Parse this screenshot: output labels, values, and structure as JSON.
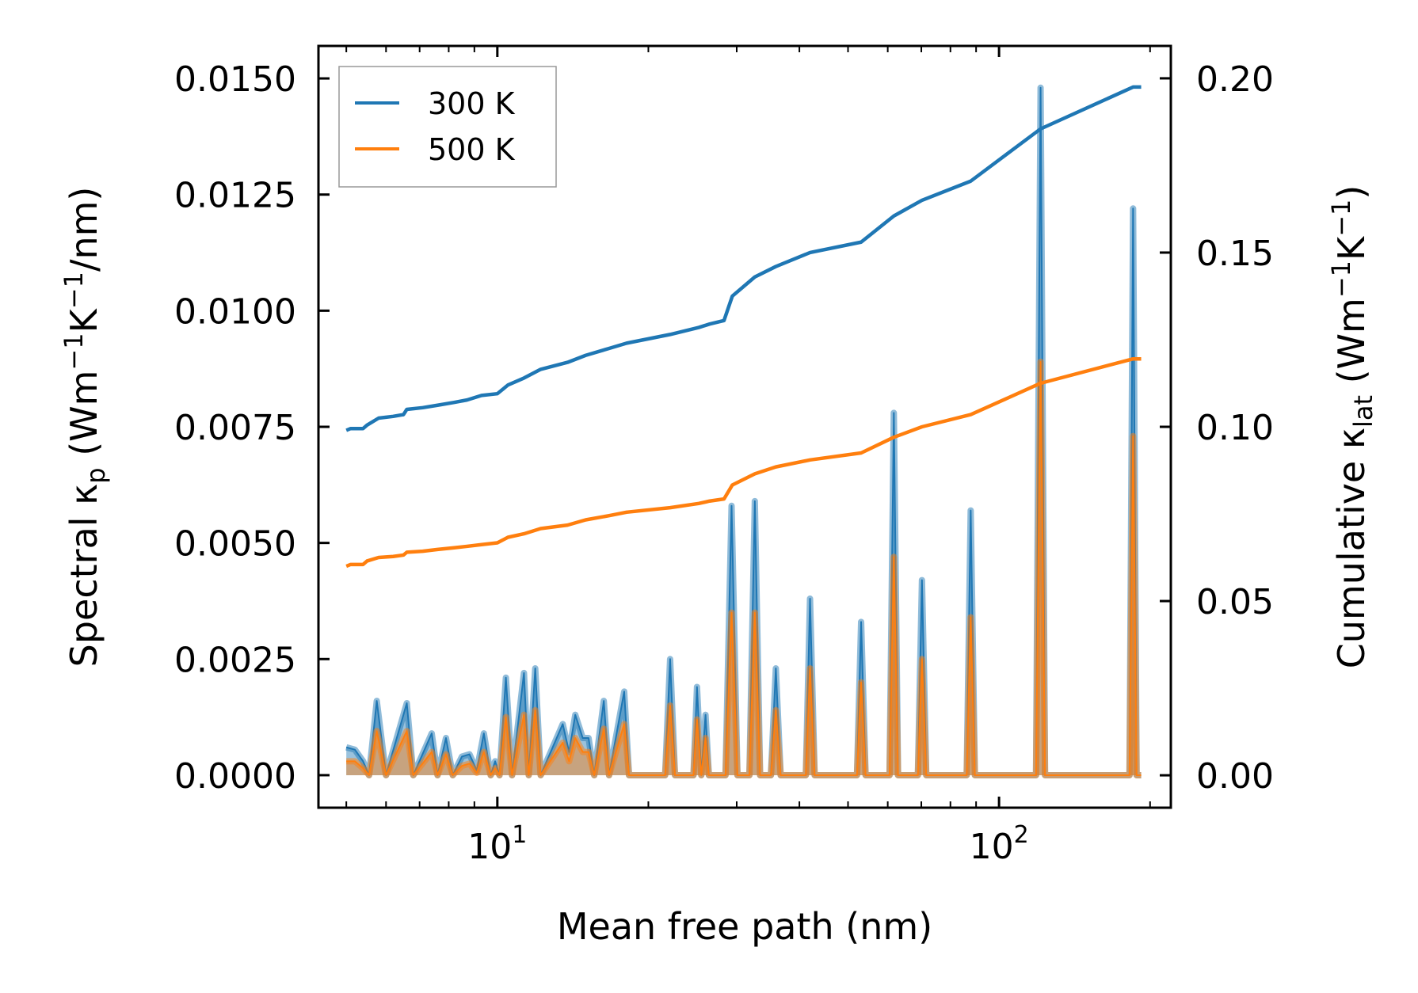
{
  "chart_data": {
    "type": "line",
    "xscale": "log",
    "xlabel": "Mean free path (nm)",
    "ylabel_left": {
      "base": "Spectral κ",
      "sub": "p",
      "units_prefix": " (Wm",
      "exp1": "−1",
      "mid": "K",
      "exp2": "−1",
      "suffix": "/nm)"
    },
    "ylabel_right": {
      "base": "Cumulative κ",
      "sub": "lat",
      "units_prefix": " (Wm",
      "exp1": "−1",
      "mid": "K",
      "exp2": "−1",
      "suffix": ")"
    },
    "xlim": [
      4.4,
      220
    ],
    "ylim_left": [
      -0.0007,
      0.0157
    ],
    "ylim_right": [
      -0.0093,
      0.2093
    ],
    "x_major_ticks": [
      10,
      100
    ],
    "x_tick_labels": [
      {
        "base": "10",
        "exp": "1"
      },
      {
        "base": "10",
        "exp": "2"
      }
    ],
    "y_left_ticks": [
      0.0,
      0.0025,
      0.005,
      0.0075,
      0.01,
      0.0125,
      0.015
    ],
    "y_left_tick_labels": [
      "0.0000",
      "0.0025",
      "0.0050",
      "0.0075",
      "0.0100",
      "0.0125",
      "0.0150"
    ],
    "y_right_ticks": [
      0.0,
      0.05,
      0.1,
      0.15,
      0.2
    ],
    "y_right_tick_labels": [
      "0.00",
      "0.05",
      "0.10",
      "0.15",
      "0.20"
    ],
    "legend": {
      "position": "top-left",
      "entries": [
        "300 K",
        "500 K"
      ]
    },
    "series": [
      {
        "name": "300 K",
        "color": "#1f77b4",
        "kind": "cumulative",
        "axis": "right",
        "points": [
          [
            5.0,
            0.099
          ],
          [
            5.1,
            0.0995
          ],
          [
            5.4,
            0.0995
          ],
          [
            5.5,
            0.1005
          ],
          [
            5.8,
            0.1025
          ],
          [
            6.2,
            0.103
          ],
          [
            6.5,
            0.1035
          ],
          [
            6.6,
            0.105
          ],
          [
            7.1,
            0.1055
          ],
          [
            7.6,
            0.1062
          ],
          [
            8.2,
            0.107
          ],
          [
            8.7,
            0.1077
          ],
          [
            9.3,
            0.109
          ],
          [
            10.0,
            0.1095
          ],
          [
            10.5,
            0.112
          ],
          [
            11.3,
            0.114
          ],
          [
            12.2,
            0.1165
          ],
          [
            13.8,
            0.1185
          ],
          [
            15.0,
            0.1205
          ],
          [
            16.7,
            0.1225
          ],
          [
            18.1,
            0.124
          ],
          [
            22.1,
            0.1265
          ],
          [
            25.2,
            0.1285
          ],
          [
            26.5,
            0.1295
          ],
          [
            28.3,
            0.1305
          ],
          [
            29.4,
            0.1375
          ],
          [
            32.6,
            0.143
          ],
          [
            35.9,
            0.146
          ],
          [
            42.0,
            0.15
          ],
          [
            53.1,
            0.153
          ],
          [
            61.7,
            0.1605
          ],
          [
            70.2,
            0.165
          ],
          [
            87.8,
            0.1705
          ],
          [
            121.0,
            0.1855
          ],
          [
            185.0,
            0.1975
          ],
          [
            192.0,
            0.1975
          ]
        ]
      },
      {
        "name": "500 K",
        "color": "#ff7f0e",
        "kind": "cumulative",
        "axis": "right",
        "points": [
          [
            5.0,
            0.06
          ],
          [
            5.1,
            0.0605
          ],
          [
            5.4,
            0.0605
          ],
          [
            5.5,
            0.0615
          ],
          [
            5.8,
            0.0625
          ],
          [
            6.2,
            0.0628
          ],
          [
            6.5,
            0.0632
          ],
          [
            6.6,
            0.064
          ],
          [
            7.1,
            0.0643
          ],
          [
            7.6,
            0.0648
          ],
          [
            8.2,
            0.0653
          ],
          [
            8.7,
            0.0657
          ],
          [
            9.3,
            0.0662
          ],
          [
            10.0,
            0.0667
          ],
          [
            10.5,
            0.0683
          ],
          [
            11.3,
            0.0693
          ],
          [
            12.2,
            0.0708
          ],
          [
            13.8,
            0.0718
          ],
          [
            15.0,
            0.0733
          ],
          [
            16.7,
            0.0745
          ],
          [
            18.1,
            0.0755
          ],
          [
            22.1,
            0.0768
          ],
          [
            25.2,
            0.078
          ],
          [
            26.5,
            0.0787
          ],
          [
            28.3,
            0.0793
          ],
          [
            29.4,
            0.0833
          ],
          [
            32.6,
            0.0865
          ],
          [
            35.9,
            0.0885
          ],
          [
            42.0,
            0.0905
          ],
          [
            53.1,
            0.0925
          ],
          [
            61.7,
            0.097
          ],
          [
            70.2,
            0.1
          ],
          [
            87.8,
            0.1035
          ],
          [
            121.0,
            0.1125
          ],
          [
            185.0,
            0.1195
          ],
          [
            192.0,
            0.1195
          ]
        ]
      },
      {
        "name": "300 K spectral",
        "color": "#1f77b4",
        "kind": "spectral",
        "axis": "left",
        "points": [
          [
            5.0,
            0.0006
          ],
          [
            5.2,
            0.00055
          ],
          [
            5.4,
            0.0003
          ],
          [
            5.55,
            0.0
          ],
          [
            5.75,
            0.0016
          ],
          [
            6.0,
            0.0
          ],
          [
            6.6,
            0.00155
          ],
          [
            6.8,
            0.0
          ],
          [
            7.4,
            0.0009
          ],
          [
            7.6,
            0.0
          ],
          [
            7.9,
            0.0008
          ],
          [
            8.15,
            0.0
          ],
          [
            8.5,
            0.0004
          ],
          [
            8.8,
            0.00045
          ],
          [
            9.1,
            0.0001
          ],
          [
            9.4,
            0.0009
          ],
          [
            9.7,
            0.0
          ],
          [
            9.9,
            0.0003
          ],
          [
            10.1,
            0.0
          ],
          [
            10.4,
            0.0021
          ],
          [
            10.7,
            0.0
          ],
          [
            11.3,
            0.0022
          ],
          [
            11.55,
            0.0
          ],
          [
            11.9,
            0.0023
          ],
          [
            12.2,
            0.0
          ],
          [
            13.5,
            0.0011
          ],
          [
            13.9,
            0.0005
          ],
          [
            14.3,
            0.0013
          ],
          [
            14.8,
            0.0008
          ],
          [
            15.2,
            0.0008
          ],
          [
            15.6,
            0.0
          ],
          [
            16.3,
            0.0016
          ],
          [
            16.7,
            0.0
          ],
          [
            17.9,
            0.0018
          ],
          [
            18.3,
            0.0
          ],
          [
            21.6,
            0.0
          ],
          [
            22.1,
            0.0025
          ],
          [
            22.6,
            0.0
          ],
          [
            24.6,
            0.0
          ],
          [
            25.0,
            0.0019
          ],
          [
            25.5,
            0.0
          ],
          [
            26.0,
            0.0013
          ],
          [
            26.4,
            0.0
          ],
          [
            28.5,
            0.0
          ],
          [
            29.3,
            0.0058
          ],
          [
            30.1,
            0.0
          ],
          [
            31.8,
            0.0
          ],
          [
            32.6,
            0.0059
          ],
          [
            33.4,
            0.0
          ],
          [
            35.1,
            0.0
          ],
          [
            35.9,
            0.0023
          ],
          [
            36.7,
            0.0
          ],
          [
            41.2,
            0.0
          ],
          [
            42.0,
            0.0038
          ],
          [
            42.9,
            0.0
          ],
          [
            52.1,
            0.0
          ],
          [
            53.1,
            0.0033
          ],
          [
            54.2,
            0.0
          ],
          [
            60.5,
            0.0
          ],
          [
            61.7,
            0.0078
          ],
          [
            62.9,
            0.0
          ],
          [
            68.9,
            0.0
          ],
          [
            70.2,
            0.0042
          ],
          [
            71.6,
            0.0
          ],
          [
            86.2,
            0.0
          ],
          [
            87.8,
            0.0057
          ],
          [
            89.5,
            0.0
          ],
          [
            118.5,
            0.0
          ],
          [
            121.0,
            0.0148
          ],
          [
            123.5,
            0.0
          ],
          [
            182.0,
            0.0
          ],
          [
            185.0,
            0.0122
          ],
          [
            188.0,
            0.0
          ],
          [
            192.0,
            0.0
          ]
        ]
      },
      {
        "name": "500 K spectral",
        "color": "#ff7f0e",
        "kind": "spectral",
        "axis": "left",
        "points": [
          [
            5.0,
            0.0003
          ],
          [
            5.2,
            0.0003
          ],
          [
            5.4,
            0.00015
          ],
          [
            5.55,
            0.0
          ],
          [
            5.75,
            0.00095
          ],
          [
            6.0,
            0.0
          ],
          [
            6.6,
            0.00095
          ],
          [
            6.8,
            0.0
          ],
          [
            7.4,
            0.0005
          ],
          [
            7.6,
            0.0
          ],
          [
            7.9,
            0.00045
          ],
          [
            8.15,
            0.0
          ],
          [
            8.5,
            0.0002
          ],
          [
            8.8,
            0.00025
          ],
          [
            9.1,
            5e-05
          ],
          [
            9.4,
            0.0005
          ],
          [
            9.7,
            0.0
          ],
          [
            9.9,
            0.00015
          ],
          [
            10.1,
            0.0
          ],
          [
            10.4,
            0.00125
          ],
          [
            10.7,
            0.0
          ],
          [
            11.3,
            0.0013
          ],
          [
            11.55,
            0.0
          ],
          [
            11.9,
            0.0014
          ],
          [
            12.2,
            0.0
          ],
          [
            13.5,
            0.0007
          ],
          [
            13.9,
            0.0003
          ],
          [
            14.3,
            0.0008
          ],
          [
            14.8,
            0.0005
          ],
          [
            15.2,
            0.0005
          ],
          [
            15.6,
            0.0
          ],
          [
            16.3,
            0.001
          ],
          [
            16.7,
            0.0
          ],
          [
            17.9,
            0.0011
          ],
          [
            18.3,
            0.0
          ],
          [
            21.6,
            0.0
          ],
          [
            22.1,
            0.0015
          ],
          [
            22.6,
            0.0
          ],
          [
            24.6,
            0.0
          ],
          [
            25.0,
            0.0012
          ],
          [
            25.5,
            0.0
          ],
          [
            26.0,
            0.0008
          ],
          [
            26.4,
            0.0
          ],
          [
            28.5,
            0.0
          ],
          [
            29.3,
            0.0035
          ],
          [
            30.1,
            0.0
          ],
          [
            31.8,
            0.0
          ],
          [
            32.6,
            0.0035
          ],
          [
            33.4,
            0.0
          ],
          [
            35.1,
            0.0
          ],
          [
            35.9,
            0.0014
          ],
          [
            36.7,
            0.0
          ],
          [
            41.2,
            0.0
          ],
          [
            42.0,
            0.0023
          ],
          [
            42.9,
            0.0
          ],
          [
            52.1,
            0.0
          ],
          [
            53.1,
            0.002
          ],
          [
            54.2,
            0.0
          ],
          [
            60.5,
            0.0
          ],
          [
            61.7,
            0.0047
          ],
          [
            62.9,
            0.0
          ],
          [
            68.9,
            0.0
          ],
          [
            70.2,
            0.0025
          ],
          [
            71.6,
            0.0
          ],
          [
            86.2,
            0.0
          ],
          [
            87.8,
            0.0034
          ],
          [
            89.5,
            0.0
          ],
          [
            118.5,
            0.0
          ],
          [
            121.0,
            0.0089
          ],
          [
            123.5,
            0.0
          ],
          [
            182.0,
            0.0
          ],
          [
            185.0,
            0.0073
          ],
          [
            188.0,
            0.0
          ],
          [
            192.0,
            0.0
          ]
        ]
      }
    ]
  }
}
